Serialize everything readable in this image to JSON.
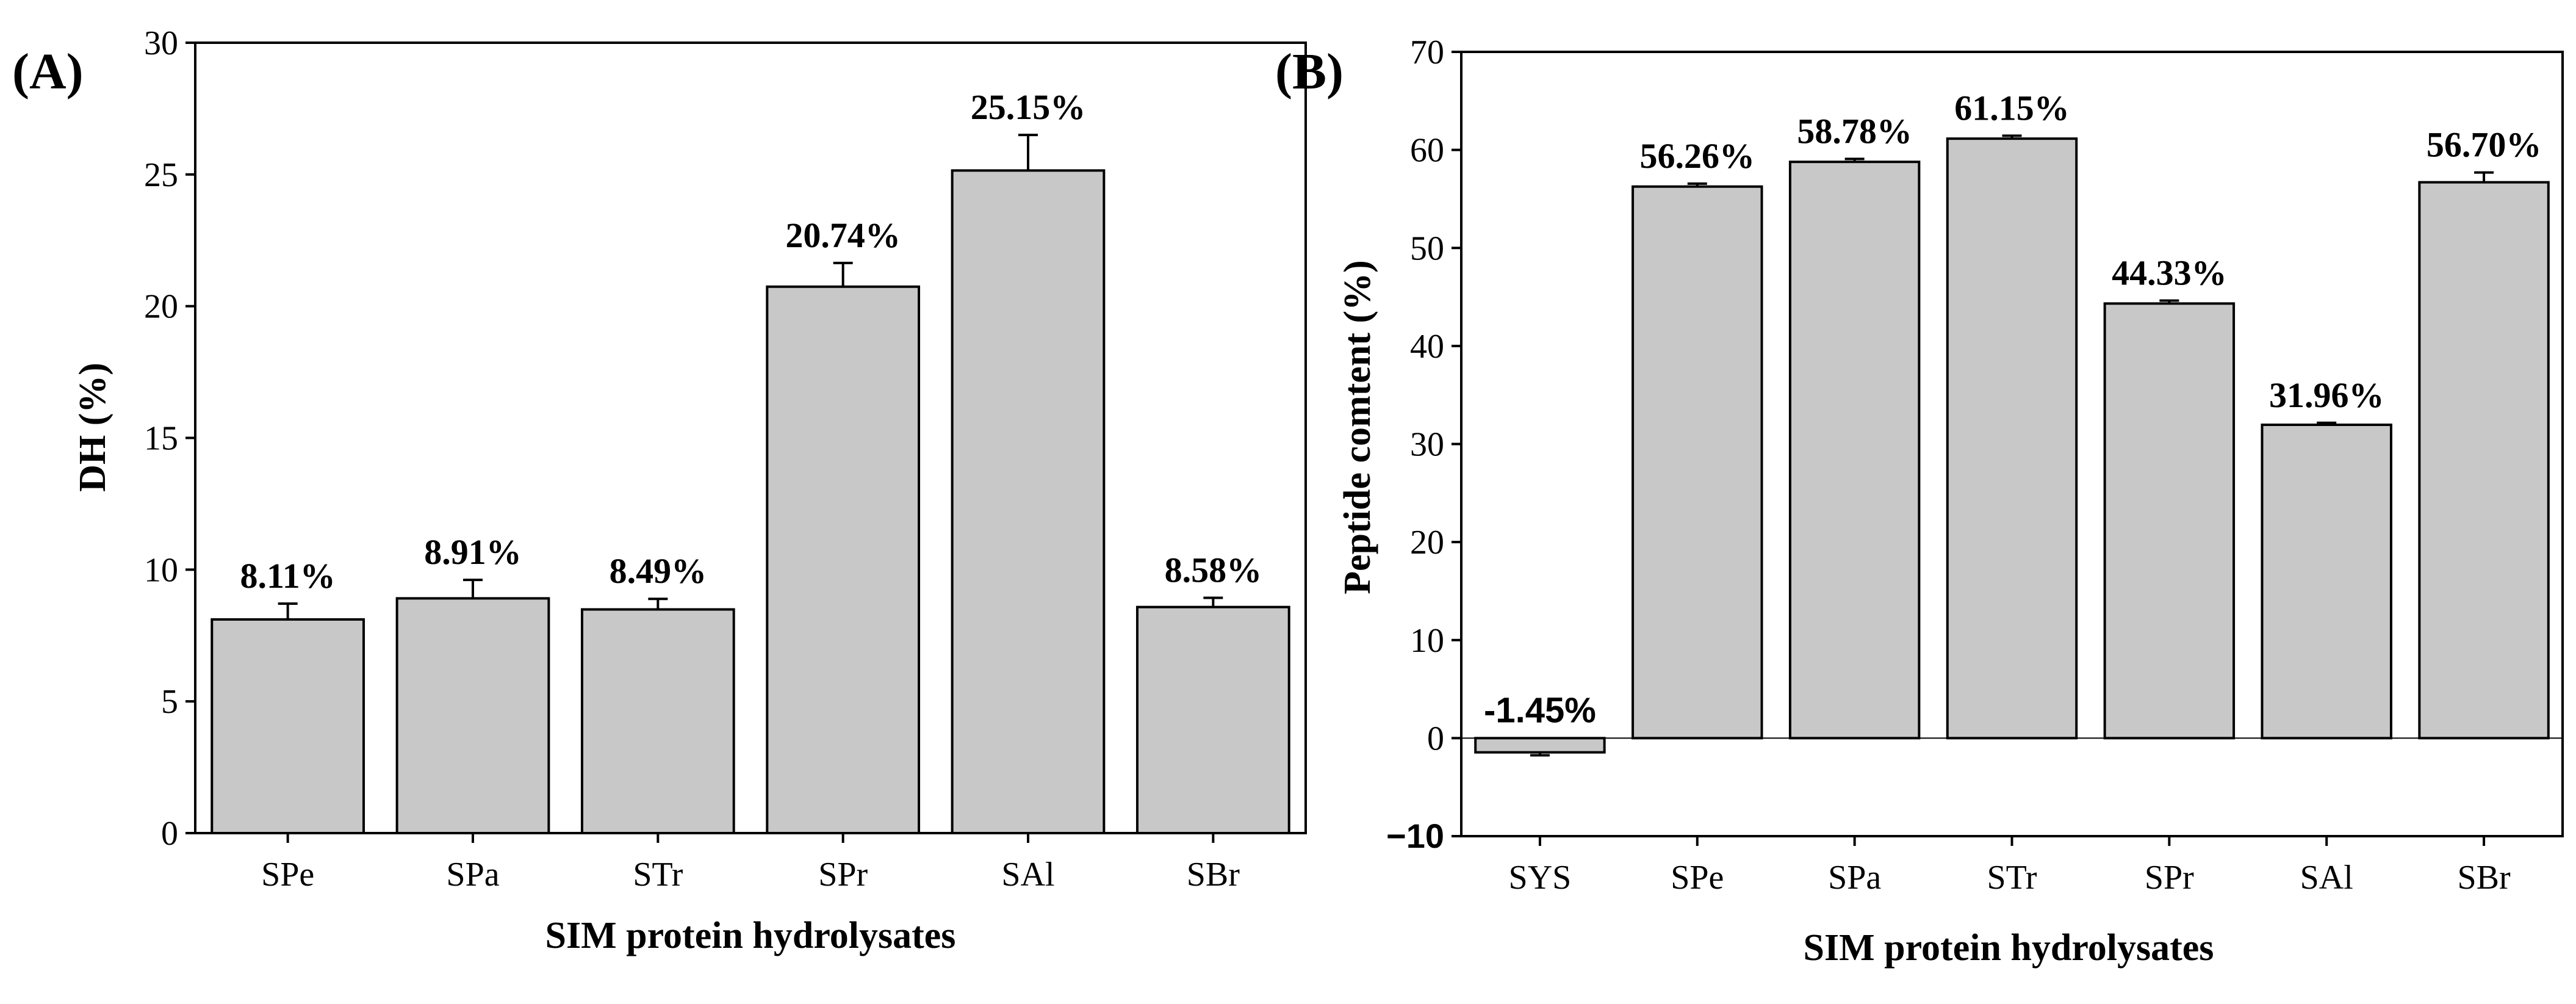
{
  "chart_data": [
    {
      "type": "bar",
      "panel_label": "(A)",
      "categories": [
        "SPe",
        "SPa",
        "STr",
        "SPr",
        "SAl",
        "SBr"
      ],
      "values": [
        8.11,
        8.91,
        8.49,
        20.74,
        25.15,
        8.58
      ],
      "errors": [
        0.6,
        0.7,
        0.4,
        0.9,
        1.35,
        0.35
      ],
      "data_labels": [
        "8.11%",
        "8.91%",
        "8.49%",
        "20.74%",
        "25.15%",
        "8.58%"
      ],
      "yticks": [
        0,
        5,
        10,
        15,
        20,
        25,
        30
      ],
      "xlabel": "SIM protein hydrolysates",
      "ylabel": "DH (%)",
      "ylim": [
        0,
        30
      ],
      "grid": false,
      "bar_color": "#c8c8c8"
    },
    {
      "type": "bar",
      "panel_label": "(B)",
      "categories": [
        "SYS",
        "SPe",
        "SPa",
        "STr",
        "SPr",
        "SAl",
        "SBr"
      ],
      "values": [
        -1.45,
        56.26,
        58.78,
        61.15,
        44.33,
        31.96,
        56.7
      ],
      "errors": [
        0.3,
        0.3,
        0.3,
        0.3,
        0.3,
        0.2,
        1.0
      ],
      "data_labels": [
        "-1.45%",
        "56.26%",
        "58.78%",
        "61.15%",
        "44.33%",
        "31.96%",
        "56.70%"
      ],
      "yticks": [
        -10,
        0,
        10,
        20,
        30,
        40,
        50,
        60,
        70
      ],
      "xlabel": "SIM protein hydrolysates",
      "ylabel": "Peptide comtent (%)",
      "ylim": [
        -10,
        70
      ],
      "grid": false,
      "bar_color": "#c8c8c8"
    }
  ]
}
